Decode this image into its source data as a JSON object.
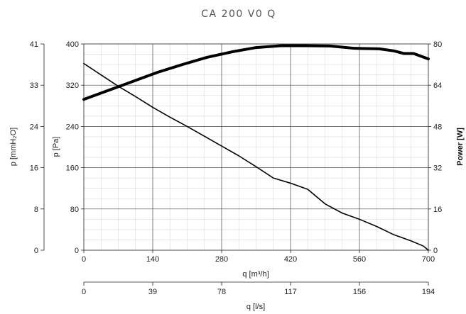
{
  "chart_data": {
    "type": "line",
    "title": "CA 200 V0 Q",
    "xlabel": "q [m³/h]",
    "xlabel_secondary": "q [l/s]",
    "ylabel": "p [Pa]",
    "ylabel_secondary": "p [mmH₂O]",
    "ylabel_right": "Power [W]",
    "xlim": [
      0,
      700
    ],
    "ylim": [
      0,
      400
    ],
    "ylim_right": [
      0,
      80
    ],
    "grid": true,
    "x_ticks": [
      "0",
      "140",
      "280",
      "420",
      "560",
      "700"
    ],
    "x_ticks_secondary": [
      "0",
      "39",
      "78",
      "117",
      "156",
      "194"
    ],
    "y_ticks": [
      "0",
      "80",
      "160",
      "240",
      "320",
      "400"
    ],
    "y_ticks_secondary": [
      "0",
      "8",
      "16",
      "24",
      "33",
      "41"
    ],
    "y_ticks_right": [
      "0",
      "16",
      "32",
      "48",
      "64",
      "80"
    ],
    "series": [
      {
        "axis": "pressure",
        "x": [
          0,
          35,
          70,
          105,
          140,
          175,
          210,
          245,
          280,
          315,
          350,
          385,
          420,
          455,
          490,
          525,
          560,
          595,
          630,
          665,
          690,
          700
        ],
        "y": [
          362,
          340,
          318,
          298,
          277,
          258,
          240,
          221,
          202,
          183,
          162,
          140,
          130,
          118,
          90,
          72,
          60,
          46,
          30,
          18,
          8,
          0
        ]
      },
      {
        "axis": "power",
        "x": [
          0,
          50,
          100,
          150,
          200,
          250,
          300,
          350,
          400,
          450,
          500,
          550,
          600,
          630,
          650,
          670,
          700
        ],
        "y": [
          58.5,
          62,
          65.5,
          69,
          72,
          74.8,
          76.9,
          78.6,
          79.3,
          79.3,
          79.2,
          78.3,
          78.1,
          77.3,
          76.3,
          76.3,
          74.2
        ]
      }
    ]
  }
}
